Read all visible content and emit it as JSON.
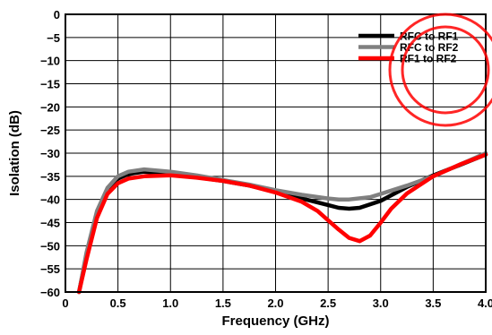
{
  "chart_data": {
    "type": "line",
    "title": "",
    "xlabel": "Frequency (GHz)",
    "ylabel": "Isolation (dB)",
    "xlim": [
      0,
      4.0
    ],
    "ylim": [
      -60,
      0
    ],
    "x_ticks": [
      "0",
      "0.5",
      "1.0",
      "1.5",
      "2.0",
      "2.5",
      "3.0",
      "3.5",
      "4.0"
    ],
    "y_ticks": [
      "0",
      "−5",
      "−10",
      "−15",
      "−20",
      "−25",
      "−30",
      "−35",
      "−40",
      "−45",
      "−50",
      "−55",
      "−60"
    ],
    "grid": true,
    "legend_position": "top-right",
    "series": [
      {
        "name": "RFC to RF1",
        "color": "#000000",
        "points": [
          [
            0.13,
            -60
          ],
          [
            0.2,
            -52
          ],
          [
            0.3,
            -43
          ],
          [
            0.4,
            -38
          ],
          [
            0.5,
            -35.5
          ],
          [
            0.6,
            -34.5
          ],
          [
            0.75,
            -34
          ],
          [
            1.0,
            -34.5
          ],
          [
            1.25,
            -35.2
          ],
          [
            1.5,
            -36
          ],
          [
            1.75,
            -37
          ],
          [
            2.0,
            -38.3
          ],
          [
            2.25,
            -39.8
          ],
          [
            2.5,
            -41.2
          ],
          [
            2.6,
            -41.8
          ],
          [
            2.7,
            -42
          ],
          [
            2.8,
            -41.8
          ],
          [
            3.0,
            -40.3
          ],
          [
            3.25,
            -37.3
          ],
          [
            3.5,
            -34.8
          ],
          [
            3.75,
            -32.6
          ],
          [
            4.0,
            -30.3
          ]
        ]
      },
      {
        "name": "RFC to RF2",
        "color": "#808080",
        "points": [
          [
            0.13,
            -60
          ],
          [
            0.2,
            -51.5
          ],
          [
            0.3,
            -42.5
          ],
          [
            0.4,
            -37.5
          ],
          [
            0.5,
            -35
          ],
          [
            0.6,
            -34
          ],
          [
            0.75,
            -33.5
          ],
          [
            1.0,
            -34
          ],
          [
            1.25,
            -34.8
          ],
          [
            1.5,
            -35.8
          ],
          [
            1.75,
            -36.8
          ],
          [
            2.0,
            -38
          ],
          [
            2.25,
            -39
          ],
          [
            2.5,
            -39.8
          ],
          [
            2.6,
            -40
          ],
          [
            2.7,
            -40
          ],
          [
            2.9,
            -39.5
          ],
          [
            3.0,
            -38.8
          ],
          [
            3.25,
            -37
          ],
          [
            3.5,
            -35
          ],
          [
            3.75,
            -32.5
          ],
          [
            4.0,
            -30
          ]
        ]
      },
      {
        "name": "RF1 to RF2",
        "color": "#ff0000",
        "points": [
          [
            0.13,
            -60
          ],
          [
            0.2,
            -53
          ],
          [
            0.3,
            -44
          ],
          [
            0.4,
            -38.8
          ],
          [
            0.5,
            -36.5
          ],
          [
            0.6,
            -35.5
          ],
          [
            0.75,
            -35
          ],
          [
            1.0,
            -34.8
          ],
          [
            1.25,
            -35.3
          ],
          [
            1.5,
            -36
          ],
          [
            1.75,
            -37
          ],
          [
            2.0,
            -38.5
          ],
          [
            2.25,
            -40.5
          ],
          [
            2.4,
            -42.5
          ],
          [
            2.5,
            -44.5
          ],
          [
            2.6,
            -46.5
          ],
          [
            2.7,
            -48.3
          ],
          [
            2.8,
            -49
          ],
          [
            2.9,
            -47.8
          ],
          [
            3.0,
            -45
          ],
          [
            3.1,
            -42
          ],
          [
            3.25,
            -38.7
          ],
          [
            3.5,
            -35
          ],
          [
            3.75,
            -32.5
          ],
          [
            4.0,
            -30.3
          ]
        ]
      }
    ]
  }
}
